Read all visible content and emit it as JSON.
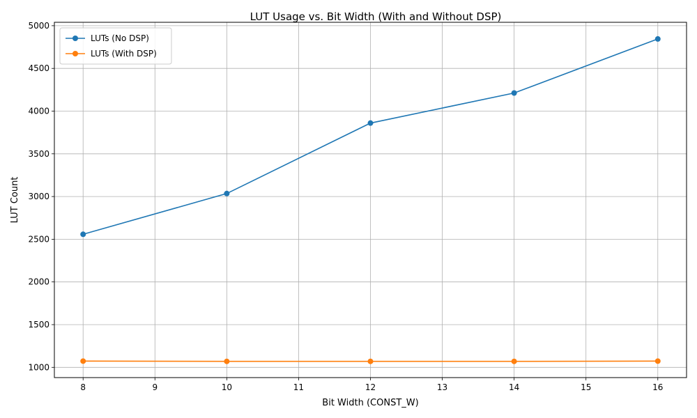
{
  "chart_data": {
    "type": "line",
    "title": "LUT Usage vs. Bit Width (With and Without DSP)",
    "xlabel": "Bit Width (CONST_W)",
    "ylabel": "LUT Count",
    "x": [
      8,
      10,
      12,
      14,
      16
    ],
    "xlim": [
      7.6,
      16.4
    ],
    "ylim": [
      880,
      5040
    ],
    "xticks": [
      8,
      9,
      10,
      11,
      12,
      13,
      14,
      15,
      16
    ],
    "yticks": [
      1000,
      1500,
      2000,
      2500,
      3000,
      3500,
      4000,
      4500,
      5000
    ],
    "grid": true,
    "legend_position": "top-left",
    "series": [
      {
        "name": "LUTs (No DSP)",
        "color": "#1f77b4",
        "marker": "circle",
        "values": [
          2558,
          3035,
          3860,
          4212,
          4845
        ]
      },
      {
        "name": "LUTs (With DSP)",
        "color": "#ff7f0e",
        "marker": "circle",
        "values": [
          1073,
          1070,
          1070,
          1070,
          1073
        ]
      }
    ]
  }
}
